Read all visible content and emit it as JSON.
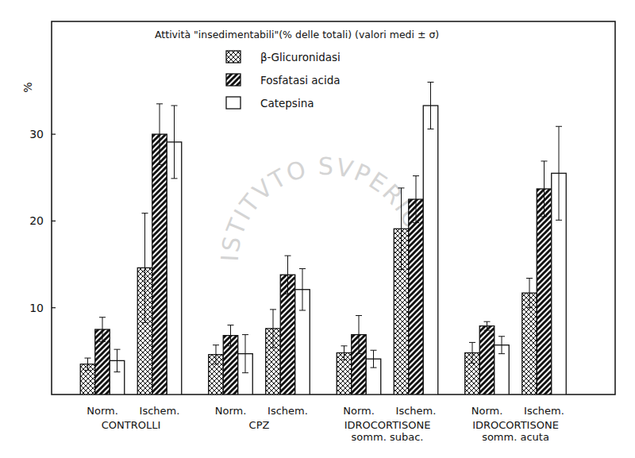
{
  "chart_data": {
    "type": "bar",
    "title": "Attività  \"insedimentabili\"(% delle totali) (valori medi ± σ)",
    "y_label": "%",
    "watermark": "ISTITVTO SVPERIORE DI SANITA",
    "categories": [
      "Norm.",
      "Ischem.",
      "Norm.",
      "Ischem.",
      "Norm.",
      "Ischem.",
      "Norm.",
      "Ischem."
    ],
    "groups": [
      [
        "CONTROLLI"
      ],
      [
        "CPZ"
      ],
      [
        "IDROCORTISONE",
        "somm. subac."
      ],
      [
        "IDROCORTISONE",
        "somm. acuta"
      ]
    ],
    "series": [
      {
        "name": "β-Glicuronidasi",
        "values": [
          3.5,
          14.6,
          4.6,
          7.6,
          4.8,
          19.1,
          4.8,
          11.7
        ],
        "errors": [
          0.7,
          6.3,
          1.1,
          2.2,
          0.8,
          4.7,
          1.2,
          1.7
        ]
      },
      {
        "name": "Fosfatasi acida",
        "values": [
          7.5,
          30.0,
          6.8,
          13.8,
          6.9,
          22.5,
          7.9,
          23.7
        ],
        "errors": [
          1.4,
          3.5,
          1.2,
          2.2,
          2.2,
          2.7,
          0.5,
          3.2
        ]
      },
      {
        "name": "Catepsina",
        "values": [
          3.9,
          29.1,
          4.7,
          12.1,
          4.1,
          33.3,
          5.7,
          25.5
        ],
        "errors": [
          1.3,
          4.2,
          2.2,
          2.4,
          1.0,
          2.7,
          1.0,
          5.4
        ]
      }
    ],
    "ylim": [
      0,
      43
    ],
    "yticks": [
      10,
      20,
      30
    ],
    "grid": false,
    "legend": "top"
  }
}
